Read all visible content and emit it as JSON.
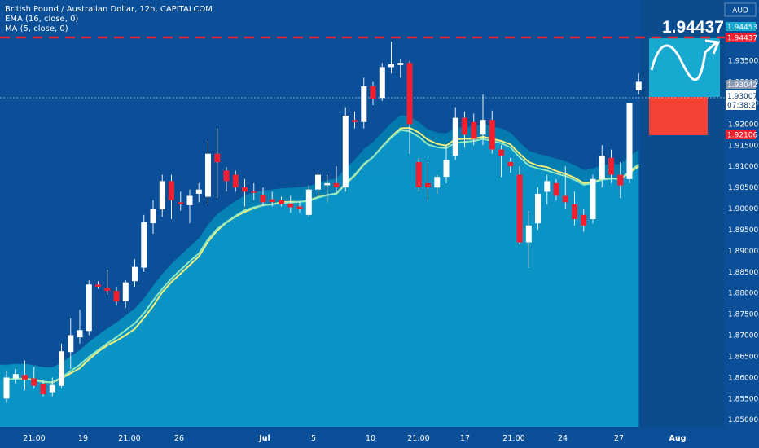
{
  "header": {
    "symbol_line": "British Pound / Australian Dollar, 12h, CAPITALCOM",
    "ema_line": "EMA (16, close, 0)",
    "ma_line": "MA (5, close, 0)",
    "currency": "AUD"
  },
  "big_price": "1.94437",
  "price_tags": {
    "ema": "1.94453",
    "target": "1.94437",
    "upper": "1.93042",
    "current": "1.93007",
    "countdown": "07:38:20",
    "stop": "1.92106"
  },
  "colors": {
    "background": "#0a4f97",
    "area_fill": "#0383b6",
    "area_fill_bottom": "#0a8fc0",
    "bull_candle": "#ffffff",
    "bear_candle": "#f2202f",
    "ema_line": "#f3ef78",
    "ma_line": "#8ee7c4",
    "target_line": "#f2202f",
    "target_box": "#17a9cf",
    "stop_box": "#f44336"
  },
  "chart_data": {
    "type": "candlestick",
    "title": "British Pound / Australian Dollar, 12h, CAPITALCOM",
    "ylabel": "AUD",
    "ylim": [
      1.8483,
      1.9494
    ],
    "y_ticks": [
      "1.94000",
      "1.93500",
      "1.93000",
      "1.92500",
      "1.92000",
      "1.91500",
      "1.91000",
      "1.90500",
      "1.90000",
      "1.89500",
      "1.89000",
      "1.88500",
      "1.88000",
      "1.87500",
      "1.87000",
      "1.86500",
      "1.86000",
      "1.85500",
      "1.85000"
    ],
    "x_ticks": [
      "21:00",
      "19",
      "21:00",
      "26",
      "Jul",
      "5",
      "10",
      "21:00",
      "17",
      "21:00",
      "24",
      "27",
      "Aug"
    ],
    "candles": [
      {
        "o": 1.855,
        "h": 1.8615,
        "l": 1.854,
        "c": 1.86
      },
      {
        "o": 1.8598,
        "h": 1.862,
        "l": 1.8585,
        "c": 1.8608
      },
      {
        "o": 1.8606,
        "h": 1.864,
        "l": 1.857,
        "c": 1.8595
      },
      {
        "o": 1.8598,
        "h": 1.8625,
        "l": 1.8575,
        "c": 1.858
      },
      {
        "o": 1.8585,
        "h": 1.8595,
        "l": 1.8555,
        "c": 1.856
      },
      {
        "o": 1.8565,
        "h": 1.86,
        "l": 1.8555,
        "c": 1.8582
      },
      {
        "o": 1.858,
        "h": 1.868,
        "l": 1.8575,
        "c": 1.8662
      },
      {
        "o": 1.866,
        "h": 1.874,
        "l": 1.862,
        "c": 1.87
      },
      {
        "o": 1.8695,
        "h": 1.876,
        "l": 1.868,
        "c": 1.8712
      },
      {
        "o": 1.871,
        "h": 1.883,
        "l": 1.87,
        "c": 1.882
      },
      {
        "o": 1.882,
        "h": 1.8828,
        "l": 1.881,
        "c": 1.8815
      },
      {
        "o": 1.8812,
        "h": 1.8855,
        "l": 1.8795,
        "c": 1.8805
      },
      {
        "o": 1.8805,
        "h": 1.8815,
        "l": 1.877,
        "c": 1.878
      },
      {
        "o": 1.878,
        "h": 1.883,
        "l": 1.8765,
        "c": 1.8825
      },
      {
        "o": 1.8828,
        "h": 1.888,
        "l": 1.8815,
        "c": 1.8862
      },
      {
        "o": 1.886,
        "h": 1.8985,
        "l": 1.885,
        "c": 1.8968
      },
      {
        "o": 1.8965,
        "h": 1.902,
        "l": 1.894,
        "c": 1.9
      },
      {
        "o": 1.8998,
        "h": 1.908,
        "l": 1.898,
        "c": 1.9065
      },
      {
        "o": 1.9065,
        "h": 1.908,
        "l": 1.8975,
        "c": 1.902
      },
      {
        "o": 1.9015,
        "h": 1.904,
        "l": 1.8995,
        "c": 1.901
      },
      {
        "o": 1.9008,
        "h": 1.9045,
        "l": 1.8965,
        "c": 1.903
      },
      {
        "o": 1.9035,
        "h": 1.906,
        "l": 1.9015,
        "c": 1.9045
      },
      {
        "o": 1.9028,
        "h": 1.916,
        "l": 1.901,
        "c": 1.913
      },
      {
        "o": 1.913,
        "h": 1.919,
        "l": 1.9025,
        "c": 1.911
      },
      {
        "o": 1.909,
        "h": 1.9098,
        "l": 1.904,
        "c": 1.9065
      },
      {
        "o": 1.908,
        "h": 1.909,
        "l": 1.904,
        "c": 1.905
      },
      {
        "o": 1.905,
        "h": 1.907,
        "l": 1.9005,
        "c": 1.904
      },
      {
        "o": 1.904,
        "h": 1.906,
        "l": 1.902,
        "c": 1.9038
      },
      {
        "o": 1.9032,
        "h": 1.905,
        "l": 1.9005,
        "c": 1.9015
      },
      {
        "o": 1.9022,
        "h": 1.904,
        "l": 1.9005,
        "c": 1.9015
      },
      {
        "o": 1.902,
        "h": 1.9028,
        "l": 1.9005,
        "c": 1.901
      },
      {
        "o": 1.9012,
        "h": 1.903,
        "l": 1.899,
        "c": 1.9003
      },
      {
        "o": 1.9005,
        "h": 1.9018,
        "l": 1.899,
        "c": 1.9
      },
      {
        "o": 1.8985,
        "h": 1.9055,
        "l": 1.898,
        "c": 1.9045
      },
      {
        "o": 1.9045,
        "h": 1.9085,
        "l": 1.903,
        "c": 1.908
      },
      {
        "o": 1.9055,
        "h": 1.908,
        "l": 1.9015,
        "c": 1.906
      },
      {
        "o": 1.906,
        "h": 1.91,
        "l": 1.904,
        "c": 1.905
      },
      {
        "o": 1.905,
        "h": 1.924,
        "l": 1.904,
        "c": 1.922
      },
      {
        "o": 1.921,
        "h": 1.923,
        "l": 1.919,
        "c": 1.9205
      },
      {
        "o": 1.9205,
        "h": 1.931,
        "l": 1.919,
        "c": 1.929
      },
      {
        "o": 1.929,
        "h": 1.93,
        "l": 1.9245,
        "c": 1.926
      },
      {
        "o": 1.9262,
        "h": 1.9345,
        "l": 1.9255,
        "c": 1.9335
      },
      {
        "o": 1.9335,
        "h": 1.9395,
        "l": 1.932,
        "c": 1.9342
      },
      {
        "o": 1.934,
        "h": 1.9355,
        "l": 1.931,
        "c": 1.9345
      },
      {
        "o": 1.9345,
        "h": 1.935,
        "l": 1.913,
        "c": 1.92
      },
      {
        "o": 1.911,
        "h": 1.912,
        "l": 1.904,
        "c": 1.905
      },
      {
        "o": 1.906,
        "h": 1.911,
        "l": 1.902,
        "c": 1.905
      },
      {
        "o": 1.905,
        "h": 1.908,
        "l": 1.9035,
        "c": 1.9075
      },
      {
        "o": 1.9075,
        "h": 1.915,
        "l": 1.906,
        "c": 1.9115
      },
      {
        "o": 1.9125,
        "h": 1.924,
        "l": 1.9115,
        "c": 1.9215
      },
      {
        "o": 1.9215,
        "h": 1.923,
        "l": 1.9145,
        "c": 1.9175
      },
      {
        "o": 1.9205,
        "h": 1.9225,
        "l": 1.915,
        "c": 1.9165
      },
      {
        "o": 1.9175,
        "h": 1.927,
        "l": 1.915,
        "c": 1.921
      },
      {
        "o": 1.921,
        "h": 1.9232,
        "l": 1.913,
        "c": 1.914
      },
      {
        "o": 1.914,
        "h": 1.915,
        "l": 1.9075,
        "c": 1.9125
      },
      {
        "o": 1.911,
        "h": 1.912,
        "l": 1.9085,
        "c": 1.91
      },
      {
        "o": 1.908,
        "h": 1.91,
        "l": 1.8915,
        "c": 1.892
      },
      {
        "o": 1.892,
        "h": 1.8995,
        "l": 1.886,
        "c": 1.896
      },
      {
        "o": 1.8965,
        "h": 1.905,
        "l": 1.895,
        "c": 1.9035
      },
      {
        "o": 1.904,
        "h": 1.908,
        "l": 1.901,
        "c": 1.9065
      },
      {
        "o": 1.906,
        "h": 1.907,
        "l": 1.902,
        "c": 1.903
      },
      {
        "o": 1.903,
        "h": 1.91,
        "l": 1.9,
        "c": 1.9015
      },
      {
        "o": 1.901,
        "h": 1.904,
        "l": 1.896,
        "c": 1.8975
      },
      {
        "o": 1.8985,
        "h": 1.9,
        "l": 1.8945,
        "c": 1.896
      },
      {
        "o": 1.8975,
        "h": 1.908,
        "l": 1.8965,
        "c": 1.907
      },
      {
        "o": 1.907,
        "h": 1.915,
        "l": 1.905,
        "c": 1.9125
      },
      {
        "o": 1.912,
        "h": 1.914,
        "l": 1.906,
        "c": 1.908
      },
      {
        "o": 1.908,
        "h": 1.911,
        "l": 1.9025,
        "c": 1.9055
      },
      {
        "o": 1.907,
        "h": 1.925,
        "l": 1.906,
        "c": 1.925
      },
      {
        "o": 1.928,
        "h": 1.932,
        "l": 1.927,
        "c": 1.93
      }
    ],
    "ema": [
      1.8595,
      1.8597,
      1.8597,
      1.8595,
      1.859,
      1.8588,
      1.8598,
      1.861,
      1.8622,
      1.8643,
      1.8661,
      1.8676,
      1.8687,
      1.87,
      1.8715,
      1.8741,
      1.8769,
      1.8802,
      1.8826,
      1.8846,
      1.8866,
      1.8887,
      1.8922,
      1.8948,
      1.8967,
      1.8981,
      1.8992,
      1.9001,
      1.9008,
      1.901,
      1.9015,
      1.9016,
      1.9016,
      1.9019,
      1.9027,
      1.9032,
      1.9035,
      1.9058,
      1.9078,
      1.9104,
      1.9122,
      1.9147,
      1.917,
      1.919,
      1.9191,
      1.918,
      1.9163,
      1.9153,
      1.9149,
      1.9164,
      1.9165,
      1.9165,
      1.917,
      1.9165,
      1.916,
      1.9152,
      1.913,
      1.911,
      1.9102,
      1.9098,
      1.9089,
      1.9082,
      1.9073,
      1.906,
      1.9062,
      1.907,
      1.9072,
      1.907,
      1.9085,
      1.91
    ],
    "ma": [
      1.8595,
      1.8597,
      1.8597,
      1.8594,
      1.8589,
      1.8589,
      1.86,
      1.8615,
      1.863,
      1.8649,
      1.8665,
      1.8681,
      1.8695,
      1.8712,
      1.8728,
      1.8752,
      1.8782,
      1.881,
      1.8834,
      1.8855,
      1.8875,
      1.8894,
      1.8927,
      1.8952,
      1.8968,
      1.8983,
      1.8996,
      1.9003,
      1.9008,
      1.901,
      1.9013,
      1.9014,
      1.9016,
      1.9018,
      1.9026,
      1.9032,
      1.9036,
      1.906,
      1.908,
      1.9106,
      1.9122,
      1.9146,
      1.9168,
      1.9186,
      1.9183,
      1.917,
      1.9152,
      1.9145,
      1.9143,
      1.9156,
      1.9158,
      1.916,
      1.9165,
      1.916,
      1.9155,
      1.9145,
      1.9122,
      1.9102,
      1.9095,
      1.909,
      1.9083,
      1.9077,
      1.9068,
      1.9056,
      1.906,
      1.9068,
      1.9071,
      1.907,
      1.9088,
      1.9105
    ]
  }
}
